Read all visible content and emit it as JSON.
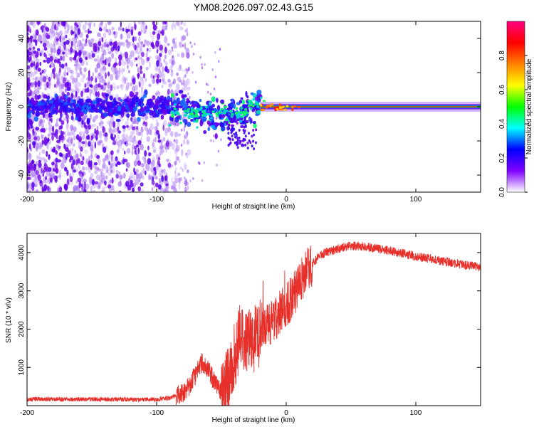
{
  "chart_data": [
    {
      "type": "heatmap",
      "title": "YM08.2026.097.02.43.G15",
      "xlabel": "Height of straight line (km)",
      "ylabel": "Frequency (Hz)",
      "xlim": [
        -200,
        150
      ],
      "ylim": [
        -50,
        50
      ],
      "xticks": [
        -200,
        -100,
        0,
        100
      ],
      "yticks": [
        -40,
        -20,
        0,
        20,
        40
      ],
      "colorbar": {
        "label": "Normalized spectral amplitude",
        "range": [
          0,
          1
        ],
        "ticks": [
          "0.0",
          "0.2",
          "0.4",
          "0.6",
          "0.8"
        ],
        "colors": [
          "#ffffff",
          "#7f00ff",
          "#0000ff",
          "#00ffff",
          "#00ff00",
          "#ffff00",
          "#ff8000",
          "#ff0000",
          "#ff0080"
        ]
      },
      "features": {
        "noise_region_x": [
          -200,
          -90
        ],
        "carrier_frequency": 0,
        "carrier_onset_x": -20
      }
    },
    {
      "type": "line",
      "title": "",
      "xlabel": "Height of straight line (km)",
      "ylabel": "SNR (10 * v/v)",
      "xlim": [
        -200,
        150
      ],
      "ylim": [
        0,
        4500
      ],
      "xticks": [
        -200,
        -100,
        0,
        100
      ],
      "yticks": [
        1000,
        2000,
        3000,
        4000
      ],
      "color": "#e8302b",
      "series": [
        {
          "name": "SNR",
          "x": [
            -200,
            -180,
            -160,
            -140,
            -120,
            -100,
            -90,
            -80,
            -75,
            -70,
            -65,
            -60,
            -55,
            -50,
            -45,
            -40,
            -35,
            -30,
            -25,
            -20,
            -15,
            -10,
            -5,
            0,
            5,
            10,
            15,
            20,
            25,
            30,
            40,
            50,
            60,
            70,
            80,
            90,
            100,
            110,
            120,
            130,
            140,
            150
          ],
          "values": [
            170,
            170,
            165,
            165,
            160,
            165,
            200,
            320,
            500,
            800,
            1150,
            900,
            600,
            350,
            600,
            1300,
            1850,
            1700,
            1750,
            1900,
            2150,
            2200,
            2450,
            2650,
            2850,
            3150,
            3450,
            3700,
            3880,
            4000,
            4100,
            4180,
            4160,
            4100,
            4050,
            3980,
            3900,
            3850,
            3780,
            3720,
            3660,
            3620
          ]
        }
      ]
    }
  ]
}
